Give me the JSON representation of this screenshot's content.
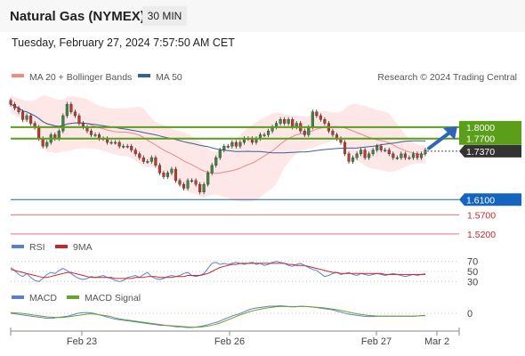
{
  "header": {
    "title": "Natural Gas (NYMEX)",
    "interval": "30 MIN"
  },
  "datetime": "Tuesday, February 27, 2024 7:57:50 AM CET",
  "legend": {
    "bb": "MA 20 + Bollinger Bands",
    "ma50": "MA 50",
    "credit": "Research © 2024 Trading Central"
  },
  "indicators": {
    "rsi": "RSI",
    "rsi_ma": "9MA",
    "macd": "MACD",
    "macd_signal": "MACD Signal"
  },
  "colors": {
    "green": "#5a9e1a",
    "blue": "#1565c0",
    "red": "#e57373",
    "dark": "#333333",
    "bb_fill": "#fde3e3",
    "ma20": "#e88a8a",
    "ma50": "#3b5e9c",
    "rsi": "#5b7fd1",
    "rsi_ma": "#c62828",
    "macd": "#5b7fd1",
    "signal": "#6aa329"
  },
  "chart_data": [
    {
      "type": "candlestick",
      "ylim": [
        1.48,
        1.9
      ],
      "x_tick_labels": [
        "Feb 23",
        "Feb 26",
        "Feb 27",
        "Mar 2"
      ],
      "levels": [
        {
          "value": 1.8,
          "label": "1.8000",
          "kind": "resistance"
        },
        {
          "value": 1.77,
          "label": "1.7700",
          "kind": "resistance"
        },
        {
          "value": 1.737,
          "label": "1.7370",
          "kind": "last"
        },
        {
          "value": 1.61,
          "label": "1.6100",
          "kind": "pivot"
        },
        {
          "value": 1.57,
          "label": "1.5700",
          "kind": "support"
        },
        {
          "value": 1.52,
          "label": "1.5200",
          "kind": "support"
        }
      ],
      "close": [
        1.86,
        1.85,
        1.84,
        1.82,
        1.83,
        1.81,
        1.8,
        1.77,
        1.75,
        1.76,
        1.78,
        1.77,
        1.79,
        1.83,
        1.86,
        1.84,
        1.83,
        1.81,
        1.8,
        1.79,
        1.78,
        1.78,
        1.77,
        1.77,
        1.76,
        1.76,
        1.76,
        1.75,
        1.75,
        1.75,
        1.74,
        1.73,
        1.72,
        1.71,
        1.71,
        1.72,
        1.7,
        1.68,
        1.67,
        1.68,
        1.69,
        1.66,
        1.65,
        1.64,
        1.66,
        1.66,
        1.65,
        1.63,
        1.65,
        1.68,
        1.7,
        1.72,
        1.74,
        1.75,
        1.75,
        1.76,
        1.75,
        1.76,
        1.77,
        1.77,
        1.76,
        1.77,
        1.78,
        1.78,
        1.79,
        1.8,
        1.81,
        1.82,
        1.81,
        1.82,
        1.8,
        1.81,
        1.79,
        1.78,
        1.8,
        1.84,
        1.83,
        1.82,
        1.81,
        1.79,
        1.78,
        1.77,
        1.76,
        1.73,
        1.71,
        1.72,
        1.73,
        1.74,
        1.72,
        1.73,
        1.74,
        1.75,
        1.74,
        1.74,
        1.73,
        1.72,
        1.72,
        1.73,
        1.72,
        1.72,
        1.73,
        1.72,
        1.73,
        1.74
      ]
    },
    {
      "type": "line",
      "title": "RSI",
      "y_tick_labels": [
        "70",
        "50",
        "30"
      ],
      "y_ticks": [
        70,
        50,
        30
      ],
      "ylim": [
        20,
        80
      ],
      "series": [
        {
          "name": "RSI",
          "values": [
            58,
            52,
            44,
            40,
            46,
            38,
            32,
            30,
            36,
            44,
            48,
            46,
            52,
            56,
            52,
            46,
            40,
            36,
            34,
            36,
            40,
            38,
            40,
            42,
            38,
            36,
            32,
            30,
            32,
            38,
            40,
            42,
            38,
            44,
            48,
            40,
            36,
            34,
            36,
            40,
            42,
            40,
            42,
            46,
            48,
            42,
            40,
            42,
            46,
            56,
            66,
            68,
            64,
            66,
            64,
            66,
            68,
            66,
            64,
            66,
            68,
            64,
            66,
            62,
            64,
            68,
            70,
            68,
            66,
            62,
            60,
            64,
            66,
            62,
            58,
            54,
            52,
            46,
            40,
            42,
            46,
            48,
            44,
            46,
            48,
            44,
            42,
            46,
            44,
            42,
            44,
            46,
            44,
            42,
            44,
            46,
            44,
            42,
            40,
            42,
            44,
            42,
            44,
            46
          ]
        },
        {
          "name": "9MA",
          "values": [
            54,
            52,
            50,
            48,
            46,
            44,
            42,
            40,
            38,
            38,
            40,
            42,
            44,
            46,
            48,
            48,
            46,
            44,
            42,
            40,
            38,
            38,
            38,
            38,
            38,
            38,
            36,
            36,
            36,
            36,
            36,
            38,
            38,
            38,
            40,
            40,
            40,
            38,
            38,
            38,
            38,
            40,
            40,
            40,
            42,
            42,
            42,
            42,
            44,
            46,
            50,
            54,
            58,
            60,
            62,
            64,
            64,
            66,
            66,
            66,
            66,
            66,
            66,
            66,
            66,
            66,
            66,
            66,
            66,
            64,
            64,
            62,
            62,
            62,
            60,
            58,
            56,
            54,
            52,
            50,
            48,
            48,
            46,
            46,
            46,
            46,
            46,
            46,
            46,
            46,
            46,
            46,
            46,
            44,
            44,
            44,
            44,
            44,
            44,
            44,
            44,
            44,
            44,
            44
          ]
        }
      ]
    },
    {
      "type": "line",
      "title": "MACD",
      "y_tick_labels": [
        "0"
      ],
      "y_ticks": [
        0
      ],
      "ylim": [
        -0.045,
        0.035
      ],
      "series": [
        {
          "name": "MACD",
          "values": [
            0.0,
            -0.002,
            -0.004,
            -0.006,
            -0.008,
            -0.01,
            -0.012,
            -0.014,
            -0.014,
            -0.012,
            -0.01,
            -0.008,
            -0.004,
            0.0,
            0.002,
            0.002,
            0.0,
            -0.004,
            -0.008,
            -0.012,
            -0.016,
            -0.018,
            -0.02,
            -0.022,
            -0.024,
            -0.026,
            -0.028,
            -0.03,
            -0.032,
            -0.034,
            -0.034,
            -0.036,
            -0.038,
            -0.038,
            -0.04,
            -0.04,
            -0.038,
            -0.036,
            -0.032,
            -0.028,
            -0.024,
            -0.018,
            -0.012,
            -0.006,
            -0.002,
            0.004,
            0.01,
            0.014,
            0.016,
            0.018,
            0.02,
            0.02,
            0.021,
            0.02,
            0.018,
            0.018,
            0.02,
            0.019,
            0.018,
            0.016,
            0.014,
            0.012,
            0.01,
            0.006,
            0.002,
            -0.002,
            -0.004,
            -0.006,
            -0.008,
            -0.009,
            -0.009,
            -0.008,
            -0.008,
            -0.008,
            -0.008,
            -0.008,
            -0.008,
            -0.008,
            -0.008,
            -0.007,
            -0.006
          ]
        },
        {
          "name": "MACD Signal",
          "values": [
            0.002,
            0.001,
            0.0,
            -0.002,
            -0.004,
            -0.006,
            -0.008,
            -0.01,
            -0.011,
            -0.012,
            -0.012,
            -0.01,
            -0.008,
            -0.006,
            -0.004,
            -0.002,
            -0.002,
            -0.004,
            -0.006,
            -0.008,
            -0.012,
            -0.016,
            -0.018,
            -0.02,
            -0.022,
            -0.024,
            -0.026,
            -0.028,
            -0.03,
            -0.032,
            -0.034,
            -0.035,
            -0.036,
            -0.037,
            -0.038,
            -0.039,
            -0.039,
            -0.038,
            -0.036,
            -0.033,
            -0.029,
            -0.024,
            -0.018,
            -0.012,
            -0.006,
            -0.001,
            0.004,
            0.008,
            0.011,
            0.014,
            0.016,
            0.018,
            0.019,
            0.019,
            0.019,
            0.019,
            0.019,
            0.019,
            0.018,
            0.017,
            0.016,
            0.014,
            0.012,
            0.01,
            0.007,
            0.004,
            0.001,
            -0.002,
            -0.004,
            -0.006,
            -0.007,
            -0.008,
            -0.008,
            -0.008,
            -0.008,
            -0.008,
            -0.008,
            -0.008,
            -0.008,
            -0.007,
            -0.007
          ]
        }
      ]
    }
  ]
}
